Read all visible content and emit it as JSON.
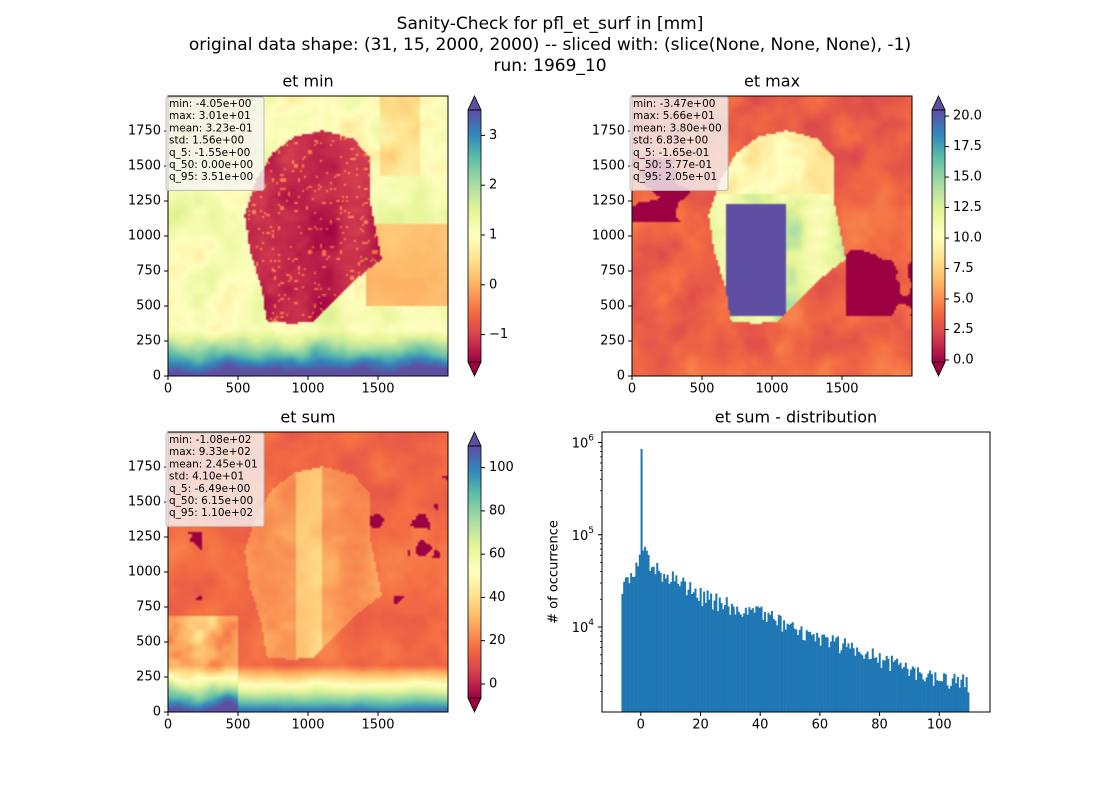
{
  "suptitle": {
    "line1": "Sanity-Check for pfl_et_surf in [mm]",
    "line2": "original data shape: (31, 15, 2000, 2000) -- sliced with: (slice(None, None, None), -1)",
    "line3": "run: 1969_10"
  },
  "colors": {
    "spectral": [
      "#9e0142",
      "#d53e4f",
      "#f46d43",
      "#fdae61",
      "#fee08b",
      "#ffffbf",
      "#e6f598",
      "#abdda4",
      "#66c2a5",
      "#3288bd",
      "#5e4fa2"
    ],
    "hist_bar": "#1f77b4",
    "stats_box_bg": "#f5f5f5",
    "stats_box_border": "#bbbbbb"
  },
  "panels": [
    {
      "id": "et-min",
      "title": "et min",
      "map_pattern": "min",
      "x_ticks": [
        "0",
        "500",
        "1000",
        "1500"
      ],
      "y_ticks": [
        "0",
        "250",
        "500",
        "750",
        "1000",
        "1250",
        "1500",
        "1750"
      ],
      "stats": [
        "min: -4.05e+00",
        "max: 3.01e+01",
        "mean: 3.23e-01",
        "std: 1.56e+00",
        "q_5: -1.55e+00",
        "q_50: 0.00e+00",
        "q_95: 3.51e+00"
      ],
      "colorbar": {
        "vmin": -1.55,
        "vmax": 3.51,
        "ticks": [
          -1,
          0,
          1,
          2,
          3
        ],
        "tick_labels": [
          "−1",
          "0",
          "1",
          "2",
          "3"
        ]
      }
    },
    {
      "id": "et-max",
      "title": "et max",
      "map_pattern": "max",
      "x_ticks": [
        "0",
        "500",
        "1000",
        "1500"
      ],
      "y_ticks": [
        "0",
        "250",
        "500",
        "750",
        "1000",
        "1250",
        "1500",
        "1750"
      ],
      "stats": [
        "min: -3.47e+00",
        "max: 5.66e+01",
        "mean: 3.80e+00",
        "std: 6.83e+00",
        "q_5: -1.65e-01",
        "q_50: 5.77e-01",
        "q_95: 2.05e+01"
      ],
      "colorbar": {
        "vmin": -0.165,
        "vmax": 20.5,
        "ticks": [
          0,
          2.5,
          5,
          7.5,
          10,
          12.5,
          15,
          17.5,
          20
        ],
        "tick_labels": [
          "0.0",
          "2.5",
          "5.0",
          "7.5",
          "10.0",
          "12.5",
          "15.0",
          "17.5",
          "20.0"
        ]
      }
    },
    {
      "id": "et-sum",
      "title": "et sum",
      "map_pattern": "sum",
      "x_ticks": [
        "0",
        "500",
        "1000",
        "1500"
      ],
      "y_ticks": [
        "0",
        "250",
        "500",
        "750",
        "1000",
        "1250",
        "1500",
        "1750"
      ],
      "stats": [
        "min: -1.08e+02",
        "max: 9.33e+02",
        "mean: 2.45e+01",
        "std: 4.10e+01",
        "q_5: -6.49e+00",
        "q_50: 6.15e+00",
        "q_95: 1.10e+02"
      ],
      "colorbar": {
        "vmin": -6.49,
        "vmax": 110,
        "ticks": [
          0,
          20,
          40,
          60,
          80,
          100
        ],
        "tick_labels": [
          "0",
          "20",
          "40",
          "60",
          "80",
          "100"
        ]
      }
    }
  ],
  "chart_data": {
    "type": "bar",
    "title": "et sum - distribution",
    "xlabel": "",
    "ylabel": "# of occurrence",
    "yscale": "log",
    "xlim": [
      -13,
      117
    ],
    "ylim": [
      1200,
      1300000
    ],
    "x_ticks": [
      0,
      20,
      40,
      60,
      80,
      100
    ],
    "y_ticks": [
      10000,
      100000,
      1000000
    ],
    "y_tick_labels": [
      "10^4",
      "10^5",
      "10^6"
    ],
    "bin_range": [
      -6.49,
      110
    ],
    "spike": {
      "x": 0,
      "value": 850000
    },
    "approx_counts_at_x": [
      [
        -6.49,
        22000
      ],
      [
        -5,
        30000
      ],
      [
        -2,
        45000
      ],
      [
        -0.5,
        60000
      ],
      [
        0,
        850000
      ],
      [
        1,
        65000
      ],
      [
        2,
        58000
      ],
      [
        5,
        42000
      ],
      [
        10,
        34000
      ],
      [
        20,
        22000
      ],
      [
        30,
        17000
      ],
      [
        40,
        14000
      ],
      [
        50,
        10000
      ],
      [
        60,
        7500
      ],
      [
        70,
        6000
      ],
      [
        80,
        4500
      ],
      [
        90,
        3500
      ],
      [
        100,
        2800
      ],
      [
        110,
        2500
      ]
    ]
  }
}
